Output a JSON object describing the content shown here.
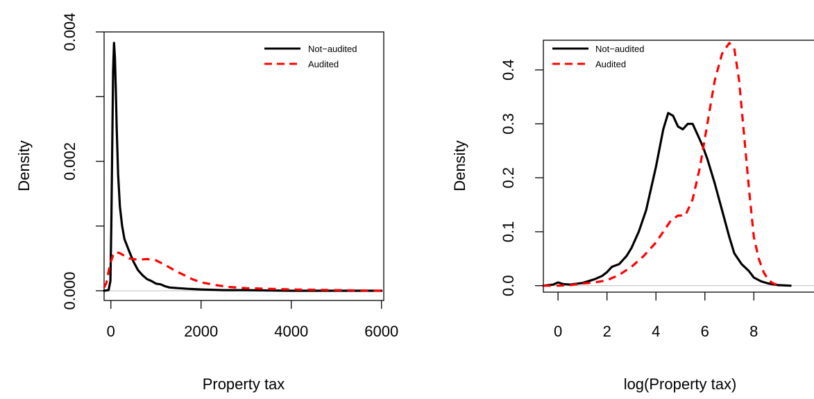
{
  "chart_data": [
    {
      "type": "line",
      "xlabel": "Property tax",
      "ylabel": "Density",
      "xlim": [
        -150,
        6050
      ],
      "ylim": [
        -0.00015,
        0.004
      ],
      "xticks": [
        0,
        2000,
        4000,
        6000
      ],
      "xtick_labels": [
        "0",
        "2000",
        "4000",
        "6000"
      ],
      "yticks": [
        0,
        0.001,
        0.002,
        0.003,
        0.004
      ],
      "ytick_labels": [
        "0.000",
        "",
        "0.002",
        "",
        "0.004"
      ],
      "baseline_y": 0,
      "legend_position": "top-right",
      "series": [
        {
          "name": "Not−audited",
          "color": "#000000",
          "dash": "solid",
          "x": [
            -150,
            -50,
            -10,
            10,
            30,
            50,
            70,
            90,
            110,
            130,
            160,
            200,
            250,
            300,
            400,
            500,
            600,
            700,
            800,
            900,
            1000,
            1100,
            1200,
            1300,
            1500,
            1700,
            2000,
            2500,
            3000,
            4000,
            5000,
            6000
          ],
          "y": [
            0,
            1e-05,
            0.00015,
            0.001,
            0.0022,
            0.0034,
            0.00383,
            0.0036,
            0.0031,
            0.0025,
            0.0018,
            0.0013,
            0.001,
            0.0008,
            0.00062,
            0.00045,
            0.00032,
            0.00024,
            0.00018,
            0.00015,
            0.00011,
            0.0001,
            7e-05,
            5e-05,
            4e-05,
            3e-05,
            2e-05,
            1e-05,
            1e-05,
            0,
            0,
            0
          ]
        },
        {
          "name": "Audited",
          "color": "#ff0000",
          "dash": "dashed",
          "x": [
            -150,
            -100,
            -50,
            0,
            50,
            100,
            200,
            400,
            600,
            800,
            1000,
            1200,
            1400,
            1600,
            1800,
            2000,
            2300,
            2600,
            3000,
            3500,
            4000,
            5000,
            6000
          ],
          "y": [
            5e-05,
            0.00012,
            0.0003,
            0.00045,
            0.00055,
            0.0006,
            0.00058,
            0.0005,
            0.00048,
            0.00049,
            0.00047,
            0.0004,
            0.00032,
            0.00025,
            0.00018,
            0.00013,
            9e-05,
            6e-05,
            4e-05,
            3e-05,
            2e-05,
            1e-05,
            0
          ]
        }
      ]
    },
    {
      "type": "line",
      "xlabel": "log(Property tax)",
      "ylabel": "Density",
      "xlim": [
        -0.6,
        10.6
      ],
      "ylim": [
        -0.012,
        0.455
      ],
      "xticks": [
        0,
        2,
        4,
        6,
        8
      ],
      "xtick_labels": [
        "0",
        "2",
        "4",
        "6",
        "8"
      ],
      "yticks": [
        0,
        0.1,
        0.2,
        0.3,
        0.4
      ],
      "ytick_labels": [
        "0.0",
        "0.1",
        "0.2",
        "0.3",
        "0.4"
      ],
      "baseline_y": 0,
      "legend_position": "top-left",
      "series": [
        {
          "name": "Not−audited",
          "color": "#000000",
          "dash": "solid",
          "x": [
            -0.6,
            -0.2,
            0,
            0.2,
            0.5,
            1,
            1.5,
            1.8,
            2,
            2.2,
            2.5,
            2.8,
            3,
            3.3,
            3.6,
            4,
            4.3,
            4.5,
            4.7,
            4.9,
            5.1,
            5.3,
            5.5,
            5.7,
            5.9,
            6.1,
            6.4,
            6.7,
            7,
            7.2,
            7.5,
            7.8,
            8,
            8.3,
            8.6,
            9,
            9.5
          ],
          "y": [
            0,
            0.002,
            0.006,
            0.003,
            0.002,
            0.005,
            0.012,
            0.018,
            0.025,
            0.035,
            0.04,
            0.055,
            0.07,
            0.1,
            0.14,
            0.22,
            0.29,
            0.32,
            0.315,
            0.295,
            0.29,
            0.3,
            0.3,
            0.28,
            0.26,
            0.235,
            0.19,
            0.14,
            0.09,
            0.06,
            0.04,
            0.027,
            0.015,
            0.008,
            0.004,
            0.001,
            0
          ]
        },
        {
          "name": "Audited",
          "color": "#ff0000",
          "dash": "dashed",
          "x": [
            -0.6,
            0,
            0.5,
            1,
            1.5,
            2,
            2.5,
            3,
            3.5,
            4,
            4.3,
            4.6,
            4.9,
            5.2,
            5.5,
            5.8,
            6.1,
            6.4,
            6.7,
            7,
            7.2,
            7.4,
            7.6,
            7.8,
            8,
            8.2,
            8.4,
            8.6,
            8.8,
            9
          ],
          "y": [
            0,
            0,
            0.001,
            0.004,
            0.006,
            0.01,
            0.02,
            0.035,
            0.055,
            0.08,
            0.1,
            0.12,
            0.13,
            0.13,
            0.16,
            0.22,
            0.3,
            0.38,
            0.43,
            0.45,
            0.44,
            0.38,
            0.28,
            0.18,
            0.09,
            0.05,
            0.025,
            0.01,
            0.004,
            0.001
          ]
        }
      ]
    }
  ]
}
